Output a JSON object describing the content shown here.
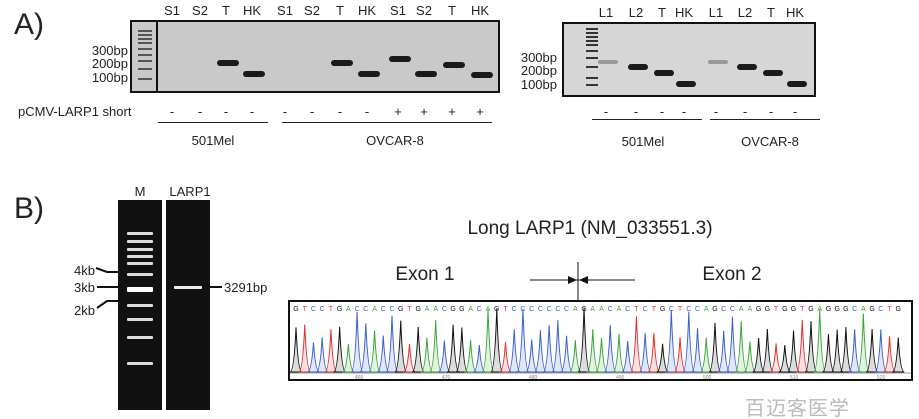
{
  "panel_a": {
    "label": "A)",
    "left_gel": {
      "size_markers": [
        "300bp",
        "200bp",
        "100bp"
      ],
      "lanes": [
        {
          "label": "S1",
          "sign": "-",
          "band_bp": null
        },
        {
          "label": "S2",
          "sign": "-",
          "band_bp": null
        },
        {
          "label": "T",
          "sign": "-",
          "band_bp": 215
        },
        {
          "label": "HK",
          "sign": "-",
          "band_bp": 140
        },
        {
          "label": "S1",
          "sign": "-",
          "band_bp": null
        },
        {
          "label": "S2",
          "sign": "-",
          "band_bp": null
        },
        {
          "label": "T",
          "sign": "-",
          "band_bp": 215
        },
        {
          "label": "HK",
          "sign": "-",
          "band_bp": 135
        },
        {
          "label": "S1",
          "sign": "+",
          "band_bp": 250
        },
        {
          "label": "S2",
          "sign": "+",
          "band_bp": 140
        },
        {
          "label": "T",
          "sign": "+",
          "band_bp": 205
        },
        {
          "label": "HK",
          "sign": "+",
          "band_bp": 130
        }
      ],
      "treatment_label": "pCMV-LARP1 short",
      "groups": [
        "501Mel",
        "OVCAR-8"
      ]
    },
    "right_gel": {
      "size_markers": [
        "300bp",
        "200bp",
        "100bp"
      ],
      "lanes": [
        {
          "label": "L1",
          "sign": "-",
          "band_bp": 280
        },
        {
          "label": "L2",
          "sign": "-",
          "band_bp": 235
        },
        {
          "label": "T",
          "sign": "-",
          "band_bp": 195
        },
        {
          "label": "HK",
          "sign": "-",
          "band_bp": 110
        },
        {
          "label": "L1",
          "sign": "-",
          "band_bp": 280
        },
        {
          "label": "L2",
          "sign": "-",
          "band_bp": 235
        },
        {
          "label": "T",
          "sign": "-",
          "band_bp": 195
        },
        {
          "label": "HK",
          "sign": "-",
          "band_bp": 110
        }
      ],
      "groups": [
        "501Mel",
        "OVCAR-8"
      ]
    }
  },
  "panel_b": {
    "label": "B)",
    "gel": {
      "lane_labels": [
        "M",
        "LARP1"
      ],
      "markers": [
        "4kb",
        "3kb",
        "2kb"
      ],
      "band_label": "3291bp"
    },
    "sequence": {
      "title": "Long LARP1 (NM_033551.3)",
      "exon1": "Exon 1",
      "exon2": "Exon 2",
      "bases": "GTCCTGACCACCGTGAACGGACAGTCCCCCCCAGAACACTCTGCTCCAGCCAAGGTGGTGAGGGCAGCTG",
      "ticks": [
        "460",
        "470",
        "480",
        "490",
        "500",
        "510",
        "520"
      ],
      "base_colors": {
        "A": "#3aa63a",
        "C": "#3a5fcf",
        "G": "#111111",
        "T": "#e03030"
      }
    }
  },
  "watermark": "百迈客医学"
}
